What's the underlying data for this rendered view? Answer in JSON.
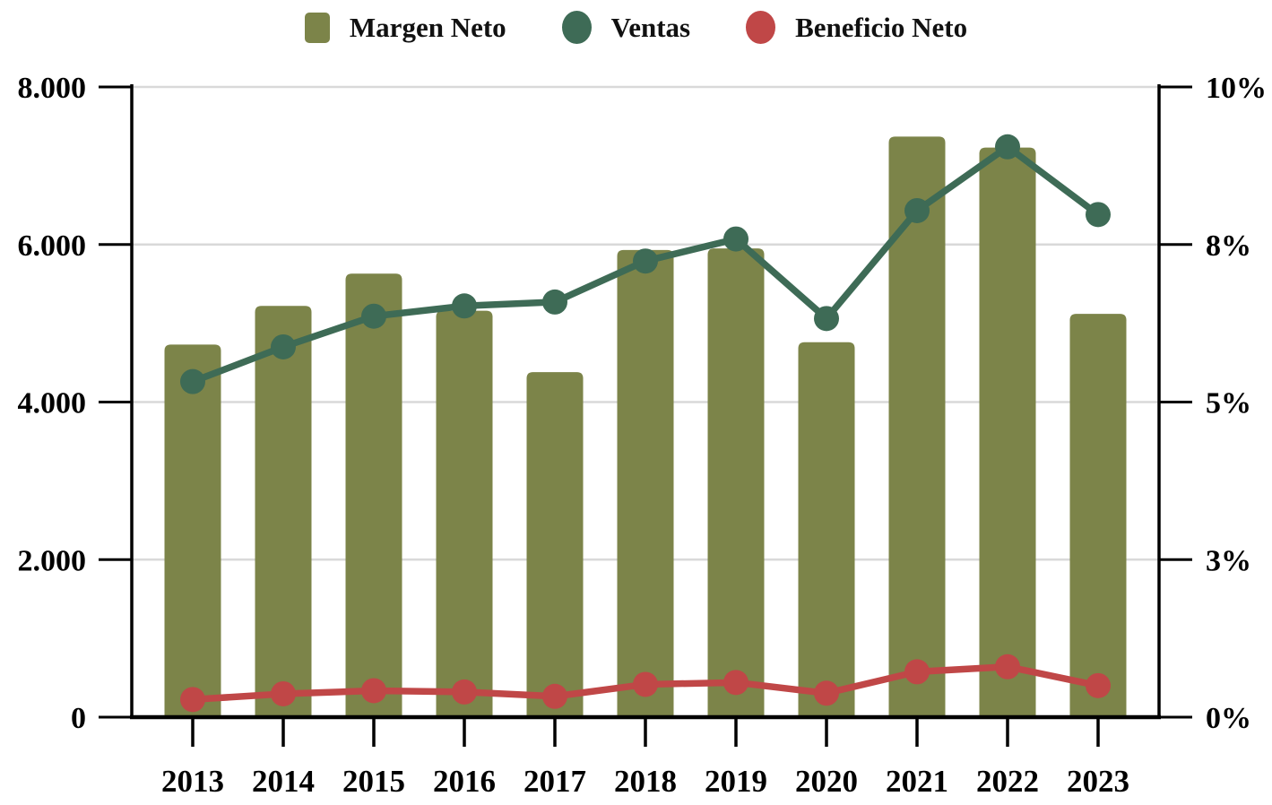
{
  "chart_data": {
    "type": "combo",
    "title": "",
    "categories": [
      "2013",
      "2014",
      "2015",
      "2016",
      "2017",
      "2018",
      "2019",
      "2020",
      "2021",
      "2022",
      "2023"
    ],
    "series": [
      {
        "name": "Margen Neto",
        "type": "bar",
        "axis": "left",
        "color": "#7C8449",
        "values": [
          4730,
          5220,
          5630,
          5160,
          4380,
          5930,
          5950,
          4760,
          7370,
          7230,
          5120
        ]
      },
      {
        "name": "Ventas",
        "type": "line",
        "axis": "left",
        "color": "#3E6B56",
        "values": [
          4260,
          4700,
          5090,
          5220,
          5270,
          5790,
          6070,
          5060,
          6430,
          7240,
          6380
        ]
      },
      {
        "name": "Beneficio Neto",
        "type": "line",
        "axis": "right",
        "unit": "%",
        "color": "#C04747",
        "values": [
          0.28,
          0.37,
          0.42,
          0.4,
          0.33,
          0.52,
          0.55,
          0.38,
          0.72,
          0.8,
          0.5
        ]
      }
    ],
    "left_axis": {
      "min": 0,
      "max": 8000,
      "tick_labels": [
        "0",
        "2.000",
        "4.000",
        "6.000",
        "8.000"
      ]
    },
    "right_axis": {
      "min": 0,
      "max": 10,
      "tick_labels": [
        "0%",
        "3%",
        "5%",
        "8%",
        "10%"
      ]
    },
    "grid": true,
    "legend_position": "top",
    "grid_color": "#D9D9D9",
    "axis_color": "#000000",
    "background_color": "#FFFFFF"
  }
}
